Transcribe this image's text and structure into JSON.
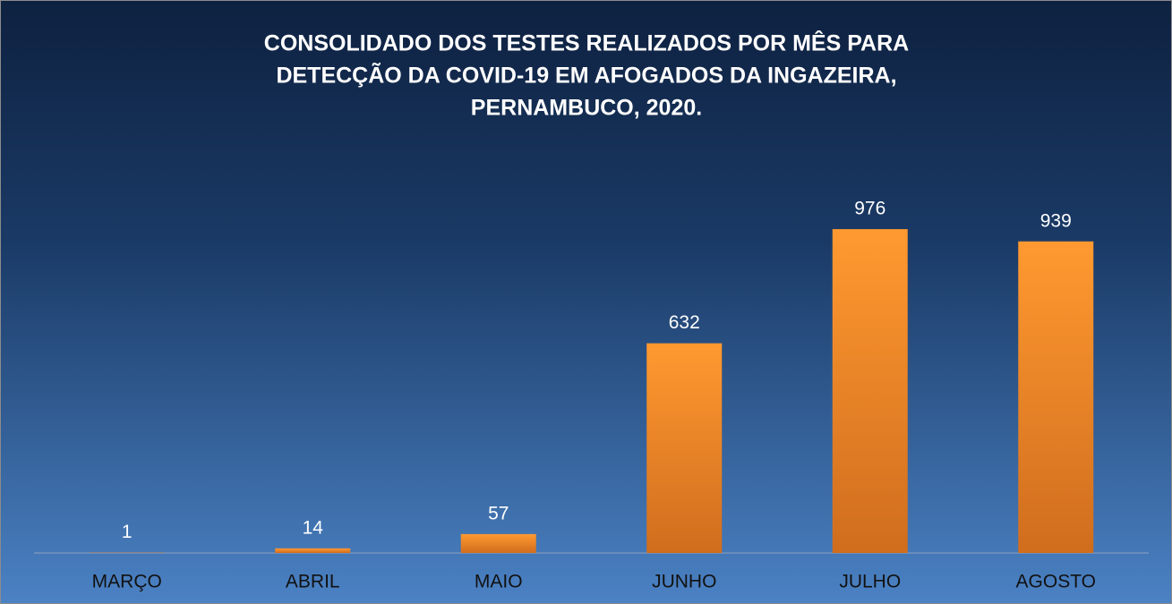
{
  "chart_data": {
    "type": "bar",
    "title": [
      "CONSOLIDADO DOS TESTES REALIZADOS POR MÊS PARA",
      "DETECÇÃO DA COVID-19 EM AFOGADOS DA INGAZEIRA,",
      "PERNAMBUCO, 2020."
    ],
    "categories": [
      "MARÇO",
      "ABRIL",
      "MAIO",
      "JUNHO",
      "JULHO",
      "AGOSTO"
    ],
    "values": [
      1,
      14,
      57,
      632,
      976,
      939
    ],
    "color": "#f28a25",
    "ylim": [
      0,
      1200
    ],
    "grid": false
  }
}
